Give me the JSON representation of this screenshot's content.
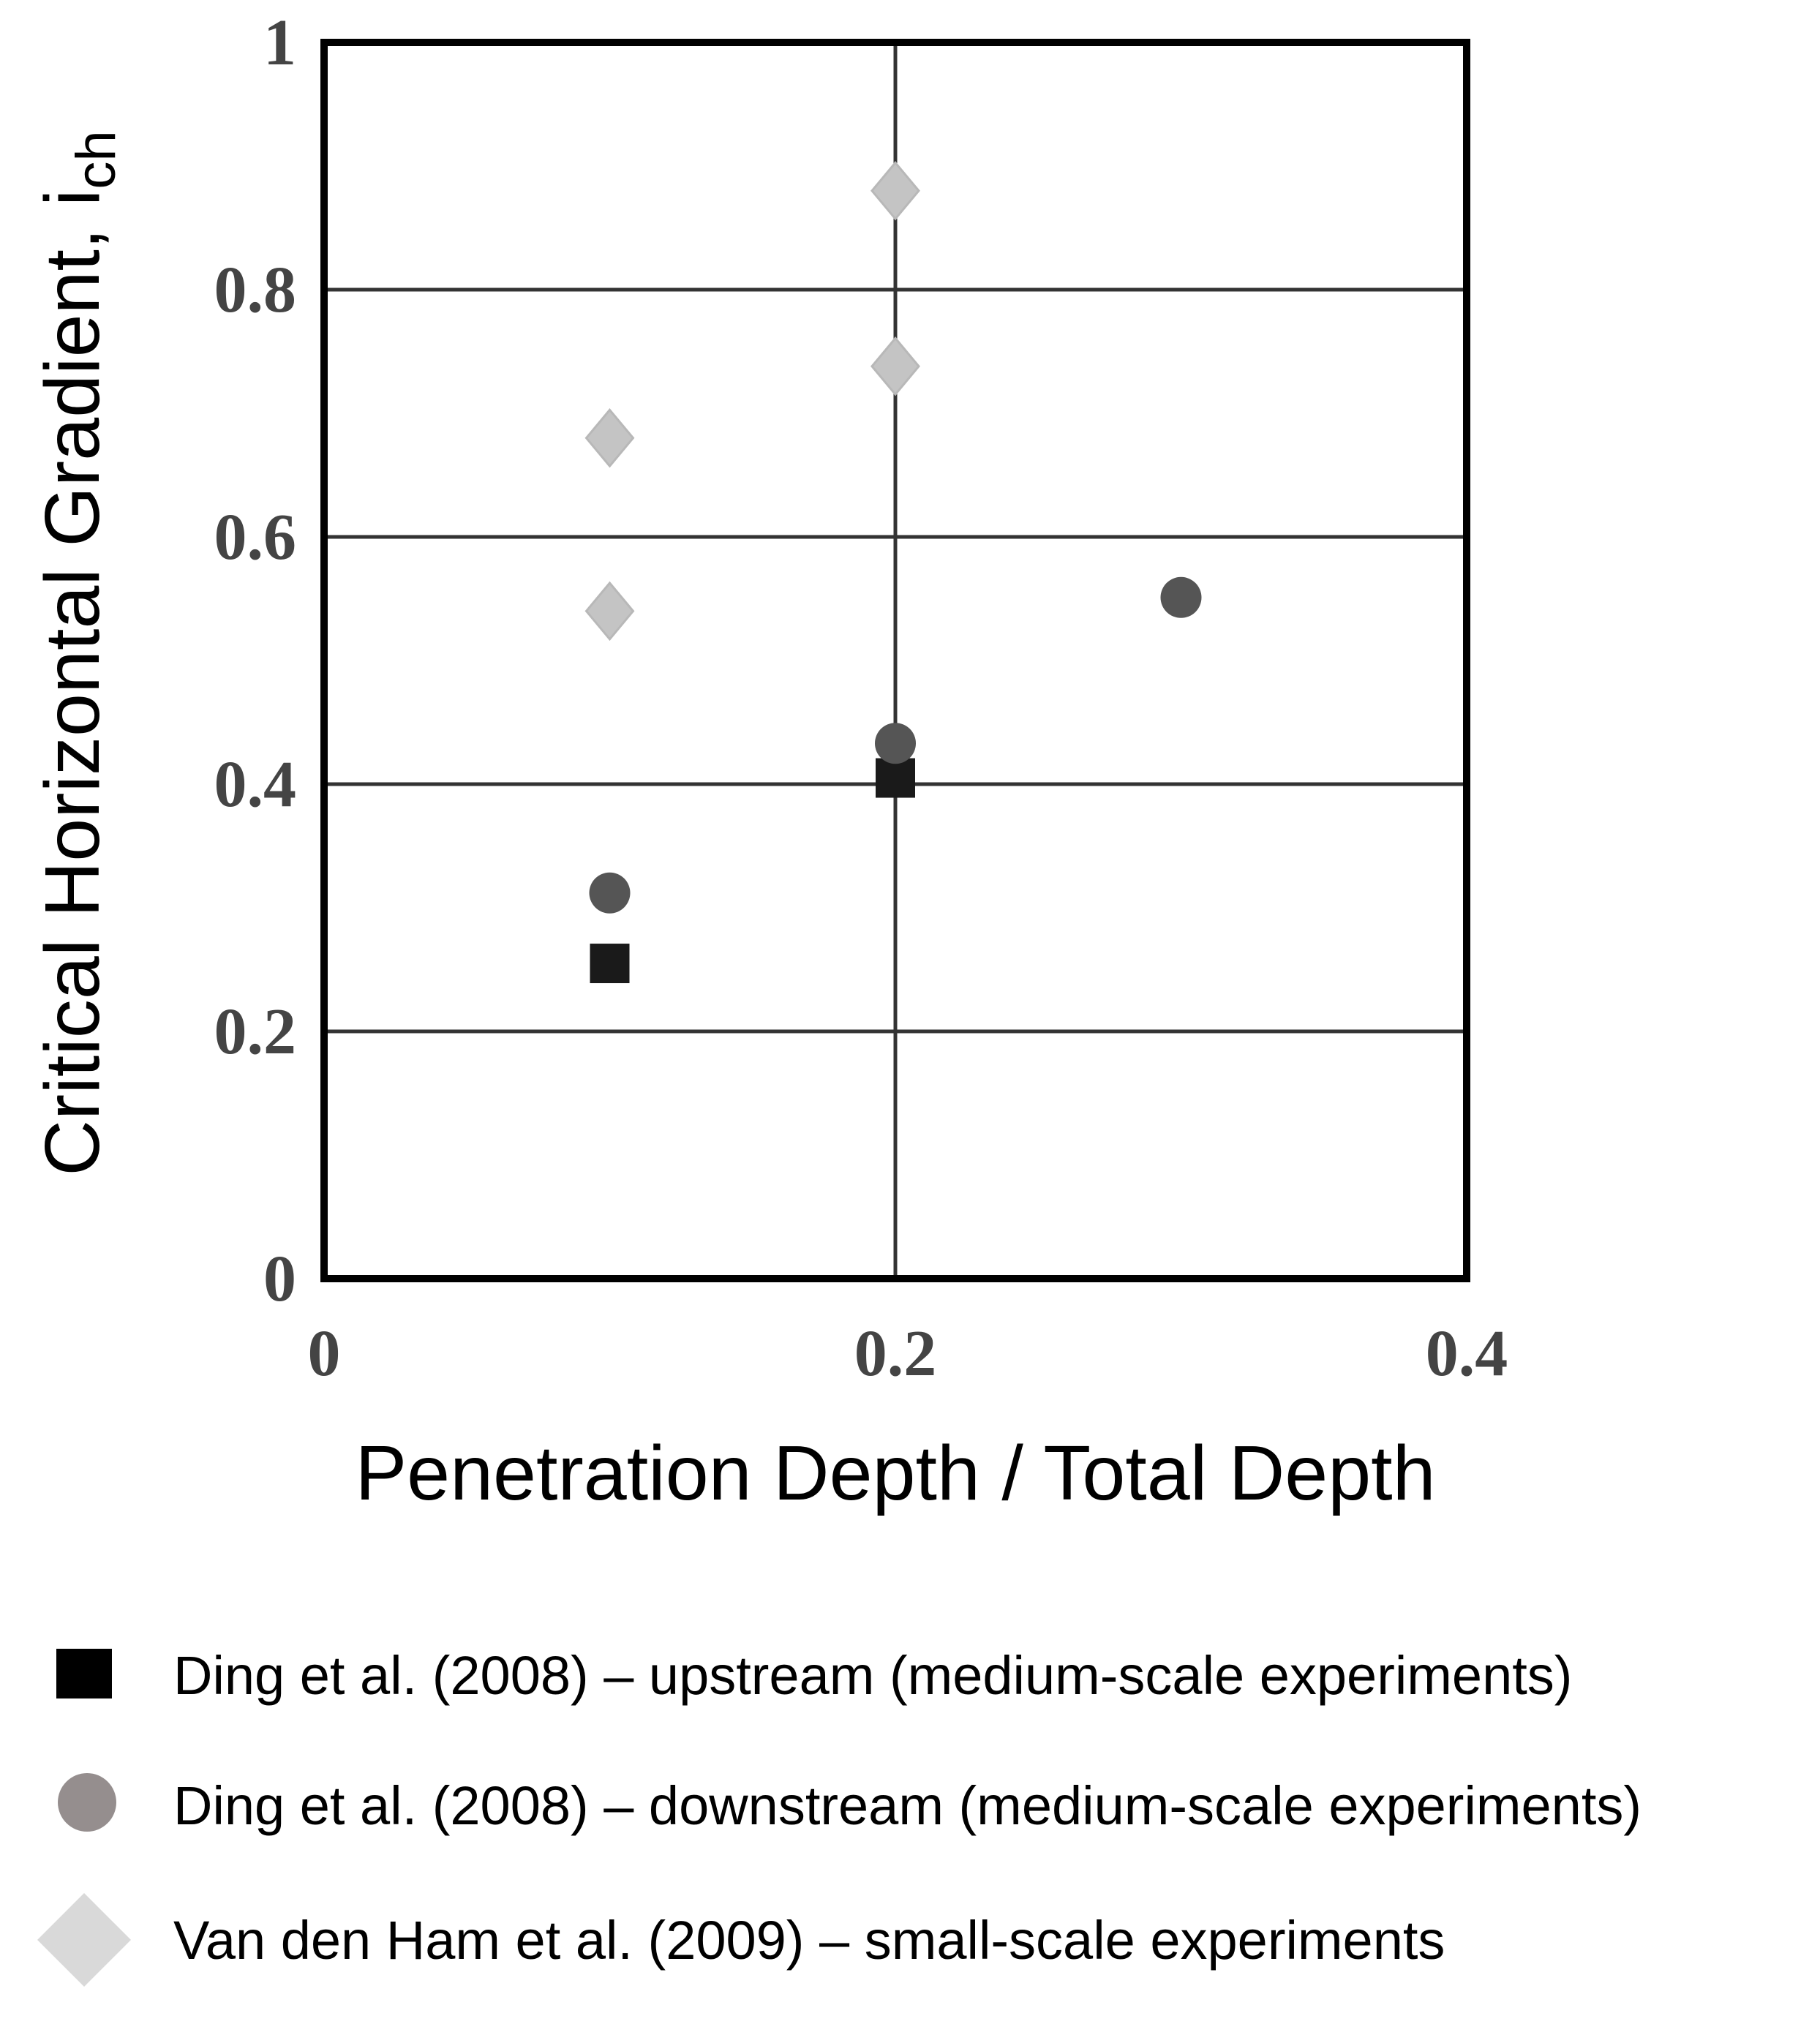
{
  "chart_data": {
    "type": "scatter",
    "title": "",
    "xlabel": "Penetration Depth / Total Depth",
    "ylabel_main": "Critical Horizontal Gradient, i",
    "ylabel_sub": "ch",
    "xlim": [
      0,
      0.4
    ],
    "ylim": [
      0,
      1
    ],
    "xticks": [
      0,
      0.2,
      0.4
    ],
    "xtick_labels": [
      "0",
      "0.2",
      "0.4"
    ],
    "yticks": [
      0,
      0.2,
      0.4,
      0.6,
      0.8,
      1
    ],
    "ytick_labels": [
      "0",
      "0.2",
      "0.4",
      "0.6",
      "0.8",
      "1"
    ],
    "grid": true,
    "legend_position": "bottom",
    "series": [
      {
        "name": "Ding et al. (2008) – upstream (medium-scale experiments)",
        "marker": "square",
        "color": "#1a1a1a",
        "legend_color": "#000000",
        "points": [
          {
            "x": 0.1,
            "y": 0.255
          },
          {
            "x": 0.2,
            "y": 0.405
          }
        ]
      },
      {
        "name": "Ding et al. (2008) – downstream (medium-scale experiments)",
        "marker": "circle",
        "color": "#555555",
        "legend_color": "#958e8e",
        "points": [
          {
            "x": 0.1,
            "y": 0.312
          },
          {
            "x": 0.2,
            "y": 0.433
          },
          {
            "x": 0.3,
            "y": 0.551
          }
        ]
      },
      {
        "name": "Van den Ham et al. (2009) – small-scale experiments",
        "marker": "diamond",
        "color": "#c4c4c4",
        "legend_color": "#d9d9d9",
        "points": [
          {
            "x": 0.1,
            "y": 0.68
          },
          {
            "x": 0.1,
            "y": 0.54
          },
          {
            "x": 0.2,
            "y": 0.88
          },
          {
            "x": 0.2,
            "y": 0.738
          }
        ]
      }
    ]
  }
}
